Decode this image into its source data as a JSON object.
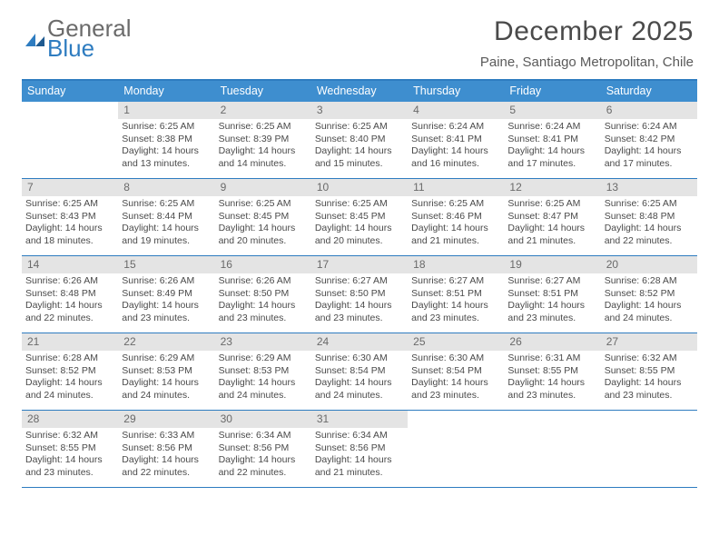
{
  "brand": {
    "word1": "General",
    "word2": "Blue"
  },
  "header": {
    "month_title": "December 2025",
    "location": "Paine, Santiago Metropolitan, Chile"
  },
  "colors": {
    "accent": "#2e7cc0",
    "header_row": "#3e8ecf",
    "daynum_bg": "#e4e4e4",
    "text": "#4a4a4a"
  },
  "weekdays": [
    "Sunday",
    "Monday",
    "Tuesday",
    "Wednesday",
    "Thursday",
    "Friday",
    "Saturday"
  ],
  "labels": {
    "sunrise_prefix": "Sunrise: ",
    "sunset_prefix": "Sunset: ",
    "daylight_prefix": "Daylight: ",
    "daylight_hours_word": " hours",
    "daylight_and": "and ",
    "daylight_minutes_word": " minutes."
  },
  "calendar": {
    "first_weekday_index": 1,
    "days": [
      {
        "n": 1,
        "sunrise": "6:25 AM",
        "sunset": "8:38 PM",
        "dl_h": 14,
        "dl_m": 13
      },
      {
        "n": 2,
        "sunrise": "6:25 AM",
        "sunset": "8:39 PM",
        "dl_h": 14,
        "dl_m": 14
      },
      {
        "n": 3,
        "sunrise": "6:25 AM",
        "sunset": "8:40 PM",
        "dl_h": 14,
        "dl_m": 15
      },
      {
        "n": 4,
        "sunrise": "6:24 AM",
        "sunset": "8:41 PM",
        "dl_h": 14,
        "dl_m": 16
      },
      {
        "n": 5,
        "sunrise": "6:24 AM",
        "sunset": "8:41 PM",
        "dl_h": 14,
        "dl_m": 17
      },
      {
        "n": 6,
        "sunrise": "6:24 AM",
        "sunset": "8:42 PM",
        "dl_h": 14,
        "dl_m": 17
      },
      {
        "n": 7,
        "sunrise": "6:25 AM",
        "sunset": "8:43 PM",
        "dl_h": 14,
        "dl_m": 18
      },
      {
        "n": 8,
        "sunrise": "6:25 AM",
        "sunset": "8:44 PM",
        "dl_h": 14,
        "dl_m": 19
      },
      {
        "n": 9,
        "sunrise": "6:25 AM",
        "sunset": "8:45 PM",
        "dl_h": 14,
        "dl_m": 20
      },
      {
        "n": 10,
        "sunrise": "6:25 AM",
        "sunset": "8:45 PM",
        "dl_h": 14,
        "dl_m": 20
      },
      {
        "n": 11,
        "sunrise": "6:25 AM",
        "sunset": "8:46 PM",
        "dl_h": 14,
        "dl_m": 21
      },
      {
        "n": 12,
        "sunrise": "6:25 AM",
        "sunset": "8:47 PM",
        "dl_h": 14,
        "dl_m": 21
      },
      {
        "n": 13,
        "sunrise": "6:25 AM",
        "sunset": "8:48 PM",
        "dl_h": 14,
        "dl_m": 22
      },
      {
        "n": 14,
        "sunrise": "6:26 AM",
        "sunset": "8:48 PM",
        "dl_h": 14,
        "dl_m": 22
      },
      {
        "n": 15,
        "sunrise": "6:26 AM",
        "sunset": "8:49 PM",
        "dl_h": 14,
        "dl_m": 23
      },
      {
        "n": 16,
        "sunrise": "6:26 AM",
        "sunset": "8:50 PM",
        "dl_h": 14,
        "dl_m": 23
      },
      {
        "n": 17,
        "sunrise": "6:27 AM",
        "sunset": "8:50 PM",
        "dl_h": 14,
        "dl_m": 23
      },
      {
        "n": 18,
        "sunrise": "6:27 AM",
        "sunset": "8:51 PM",
        "dl_h": 14,
        "dl_m": 23
      },
      {
        "n": 19,
        "sunrise": "6:27 AM",
        "sunset": "8:51 PM",
        "dl_h": 14,
        "dl_m": 23
      },
      {
        "n": 20,
        "sunrise": "6:28 AM",
        "sunset": "8:52 PM",
        "dl_h": 14,
        "dl_m": 24
      },
      {
        "n": 21,
        "sunrise": "6:28 AM",
        "sunset": "8:52 PM",
        "dl_h": 14,
        "dl_m": 24
      },
      {
        "n": 22,
        "sunrise": "6:29 AM",
        "sunset": "8:53 PM",
        "dl_h": 14,
        "dl_m": 24
      },
      {
        "n": 23,
        "sunrise": "6:29 AM",
        "sunset": "8:53 PM",
        "dl_h": 14,
        "dl_m": 24
      },
      {
        "n": 24,
        "sunrise": "6:30 AM",
        "sunset": "8:54 PM",
        "dl_h": 14,
        "dl_m": 24
      },
      {
        "n": 25,
        "sunrise": "6:30 AM",
        "sunset": "8:54 PM",
        "dl_h": 14,
        "dl_m": 23
      },
      {
        "n": 26,
        "sunrise": "6:31 AM",
        "sunset": "8:55 PM",
        "dl_h": 14,
        "dl_m": 23
      },
      {
        "n": 27,
        "sunrise": "6:32 AM",
        "sunset": "8:55 PM",
        "dl_h": 14,
        "dl_m": 23
      },
      {
        "n": 28,
        "sunrise": "6:32 AM",
        "sunset": "8:55 PM",
        "dl_h": 14,
        "dl_m": 23
      },
      {
        "n": 29,
        "sunrise": "6:33 AM",
        "sunset": "8:56 PM",
        "dl_h": 14,
        "dl_m": 22
      },
      {
        "n": 30,
        "sunrise": "6:34 AM",
        "sunset": "8:56 PM",
        "dl_h": 14,
        "dl_m": 22
      },
      {
        "n": 31,
        "sunrise": "6:34 AM",
        "sunset": "8:56 PM",
        "dl_h": 14,
        "dl_m": 21
      }
    ]
  }
}
